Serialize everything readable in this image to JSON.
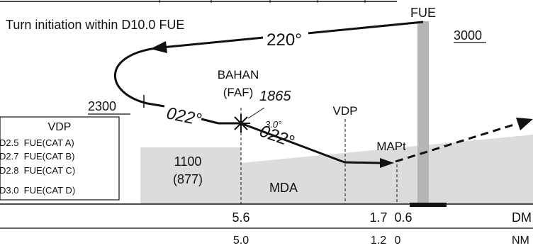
{
  "title": "Turn initiation within D10.0 FUE",
  "fix_fue": "FUE",
  "altitudes": {
    "alt_3000": "3000",
    "alt_2300": "2300",
    "alt_1865": "1865"
  },
  "courses": {
    "outbound": "220°",
    "inbound_before_faf": "022°",
    "inbound_after_faf": "022°"
  },
  "glide_angle": "3.0°",
  "faf": {
    "name": "BAHAN",
    "role": "(FAF)"
  },
  "vdp_label": "VDP",
  "mapt_label": "MAPt",
  "mda_box": {
    "mda": "1100",
    "hat": "(877)",
    "label": "MDA"
  },
  "vdp_table": {
    "title": "VDP",
    "rows": [
      "D2.5  FUE(CAT A)",
      "D2.7  FUE(CAT B)",
      "D2.8  FUE(CAT C)",
      "D3.0  FUE(CAT D)"
    ]
  },
  "scale": {
    "dme_label": "DM",
    "nm_label": "NM",
    "dme_values": [
      "5.6",
      "1.7",
      "0.6"
    ],
    "nm_values": [
      "5.0",
      "1.2",
      "0"
    ]
  },
  "colors": {
    "terrain": "#dcdcdc",
    "runway": "#b5b5b5",
    "line": "#111111"
  }
}
